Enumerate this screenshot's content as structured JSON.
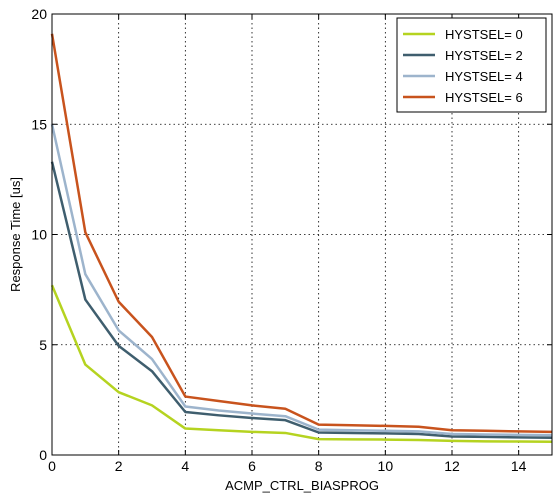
{
  "chart_data": {
    "type": "line",
    "xlabel": "ACMP_CTRL_BIASPROG",
    "ylabel": "Response Time [us]",
    "xlim": [
      0,
      15
    ],
    "ylim": [
      0,
      20
    ],
    "xticks": [
      0,
      2,
      4,
      6,
      8,
      10,
      12,
      14
    ],
    "yticks": [
      0,
      5,
      10,
      15,
      20
    ],
    "grid": true,
    "legend_position": "top-right",
    "x": [
      0,
      1,
      2,
      3,
      4,
      5,
      6,
      7,
      8,
      9,
      10,
      11,
      12,
      13,
      14,
      15
    ],
    "series": [
      {
        "name": "HYSTSEL= 0",
        "color": "#b5d320",
        "values": [
          7.7,
          4.1,
          2.85,
          2.25,
          1.2,
          1.12,
          1.05,
          1.0,
          0.72,
          0.71,
          0.7,
          0.68,
          0.64,
          0.62,
          0.61,
          0.6
        ]
      },
      {
        "name": "HYSTSEL= 2",
        "color": "#3f5e6e",
        "values": [
          13.3,
          7.05,
          4.95,
          3.8,
          1.95,
          1.8,
          1.68,
          1.58,
          1.02,
          1.0,
          0.98,
          0.95,
          0.84,
          0.82,
          0.8,
          0.78
        ]
      },
      {
        "name": "HYSTSEL= 4",
        "color": "#9db4cc",
        "values": [
          15.0,
          8.2,
          5.65,
          4.35,
          2.2,
          2.02,
          1.88,
          1.76,
          1.15,
          1.12,
          1.1,
          1.07,
          0.95,
          0.93,
          0.91,
          0.9
        ]
      },
      {
        "name": "HYSTSEL= 6",
        "color": "#c8531d",
        "values": [
          19.1,
          10.1,
          6.95,
          5.35,
          2.65,
          2.45,
          2.25,
          2.1,
          1.38,
          1.35,
          1.32,
          1.28,
          1.12,
          1.1,
          1.07,
          1.05
        ]
      }
    ]
  }
}
